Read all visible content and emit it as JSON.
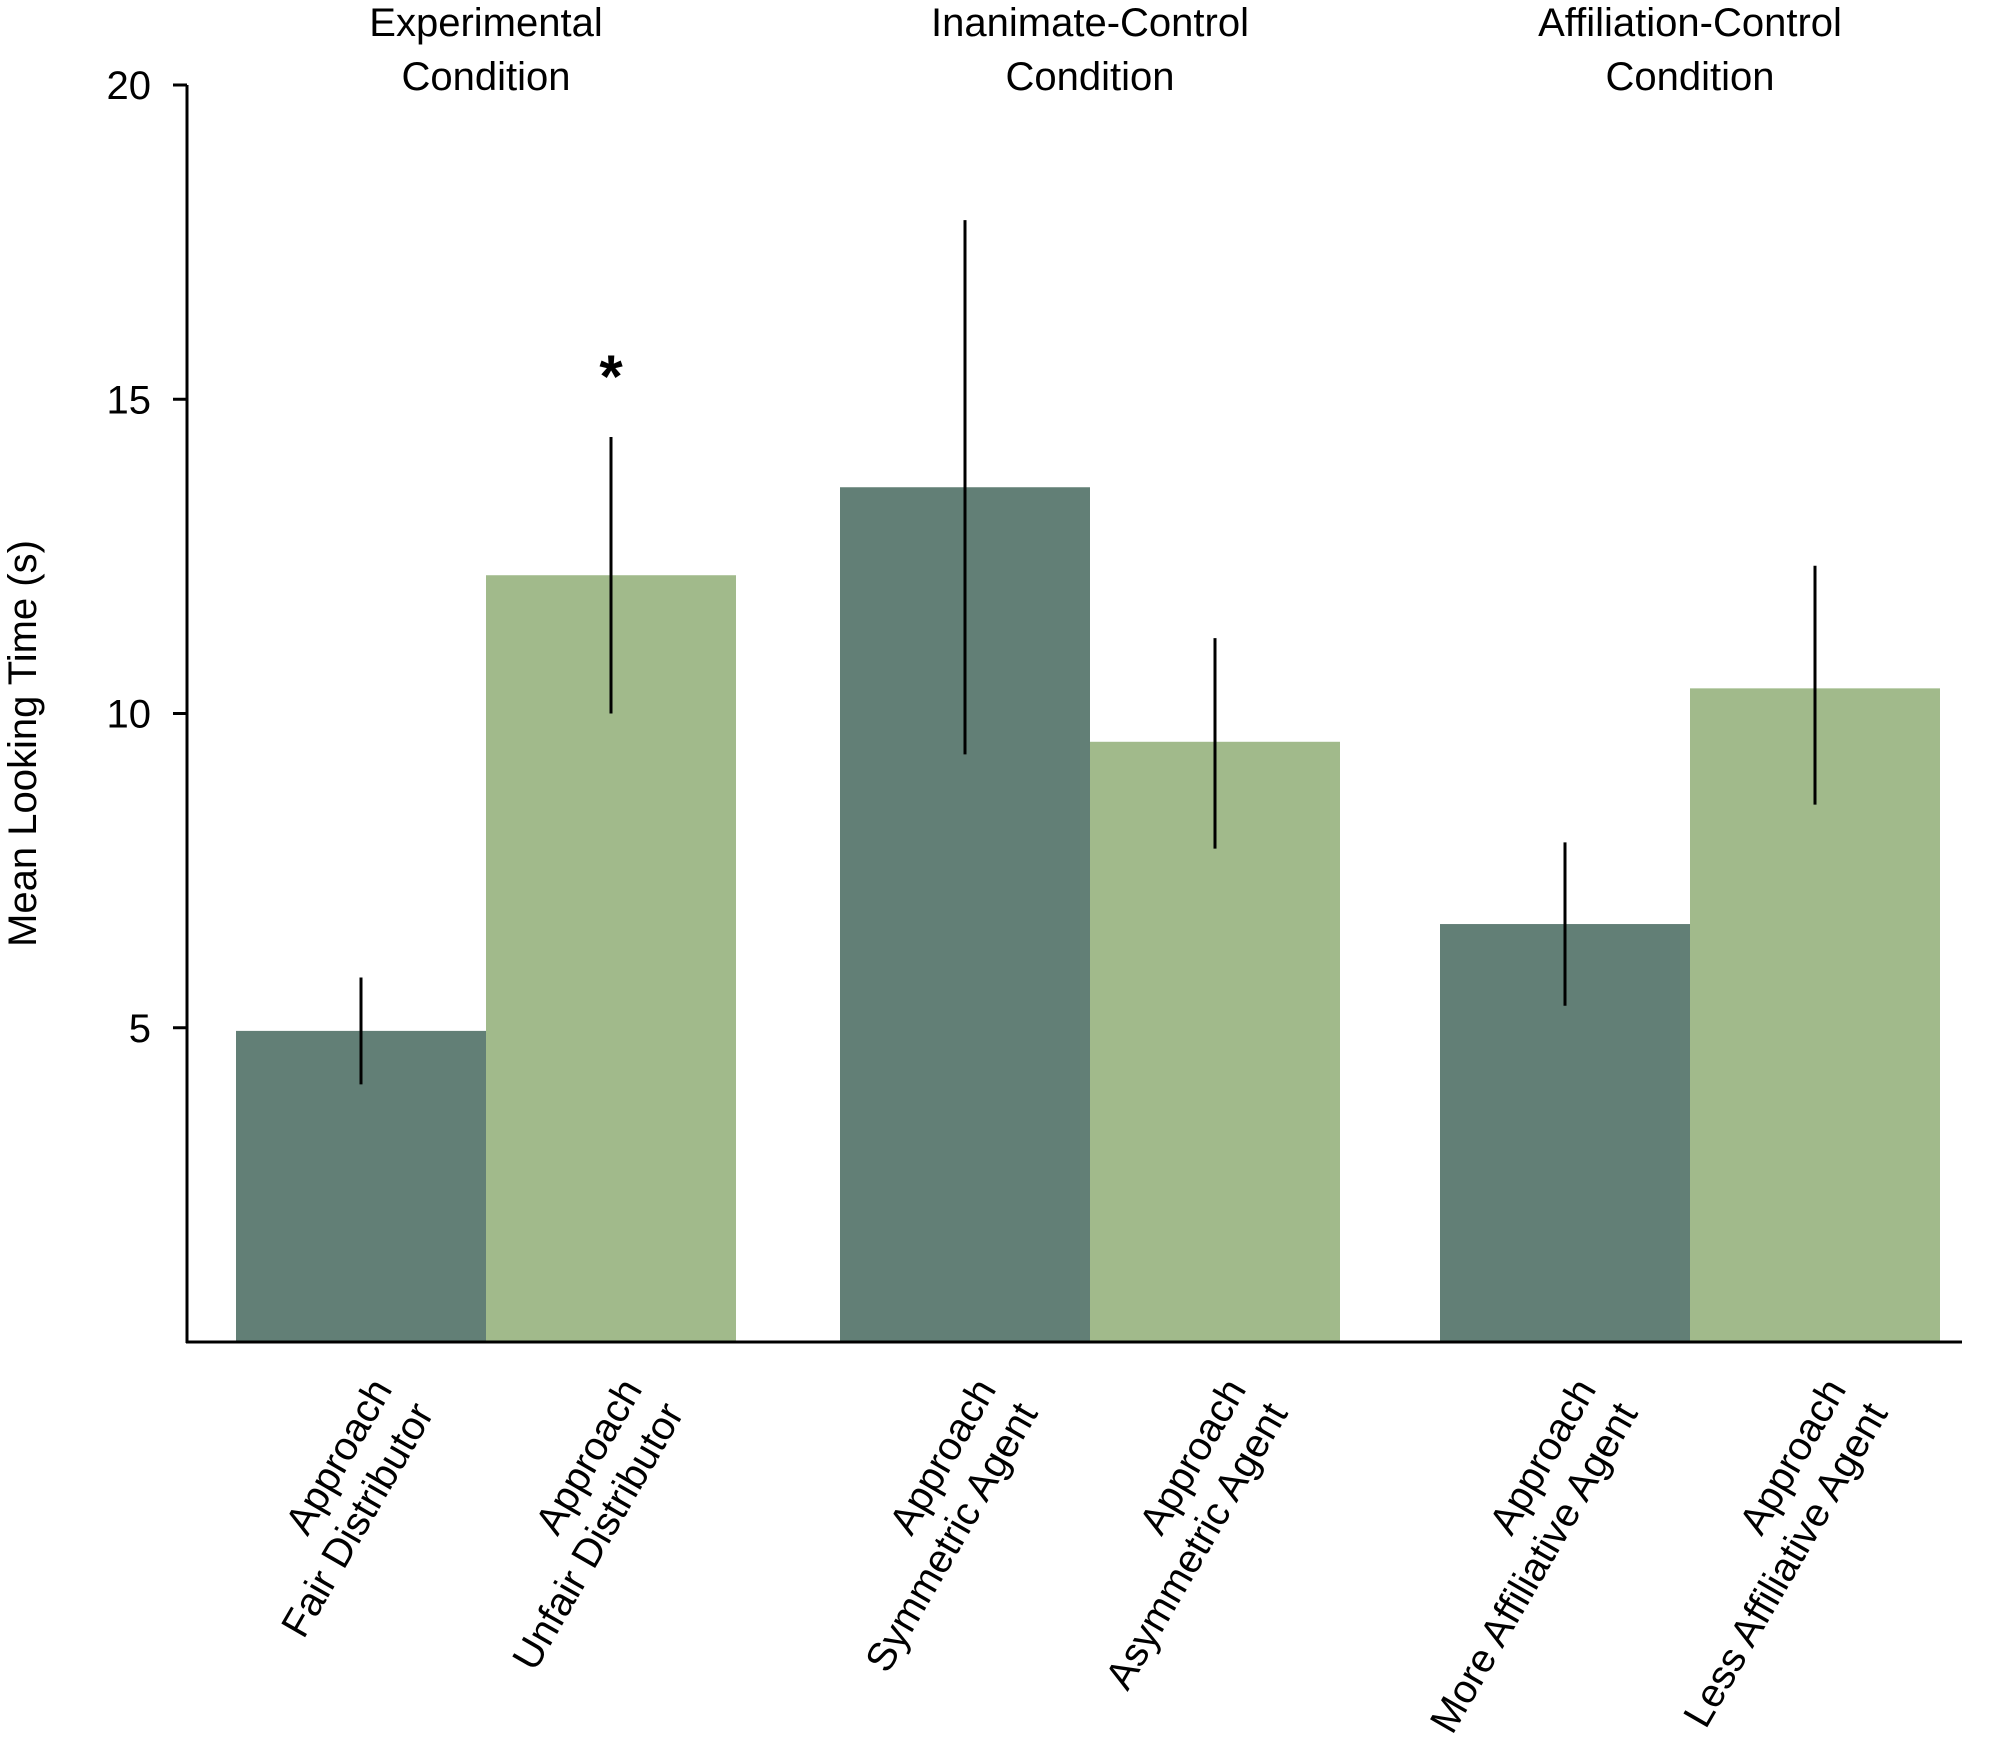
{
  "chart_data": {
    "type": "bar",
    "title": "",
    "xlabel": "",
    "ylabel": "Mean Looking Time (s)",
    "ylim": [
      0,
      20
    ],
    "yticks": [
      5,
      10,
      15,
      20
    ],
    "groups": [
      {
        "title_lines": [
          "Experimental",
          "Condition"
        ],
        "bars": [
          {
            "label_lines": [
              "Approach",
              "Fair Distributor"
            ],
            "value": 4.95,
            "err_low": 4.1,
            "err_high": 5.8,
            "series": "approach_a"
          },
          {
            "label_lines": [
              "Approach",
              "Unfair  Distributor"
            ],
            "value": 12.2,
            "err_low": 10.0,
            "err_high": 14.4,
            "series": "approach_b",
            "annotation": "*"
          }
        ]
      },
      {
        "title_lines": [
          "Inanimate-Control",
          "Condition"
        ],
        "bars": [
          {
            "label_lines": [
              "Approach",
              "Symmetric Agent"
            ],
            "value": 13.6,
            "err_low": 9.35,
            "err_high": 17.85,
            "series": "approach_a"
          },
          {
            "label_lines": [
              "Approach",
              "Asymmetric Agent"
            ],
            "value": 9.55,
            "err_low": 7.85,
            "err_high": 11.2,
            "series": "approach_b"
          }
        ]
      },
      {
        "title_lines": [
          "Affiliation-Control",
          "Condition"
        ],
        "bars": [
          {
            "label_lines": [
              "Approach",
              "More Affiliative Agent"
            ],
            "value": 6.65,
            "err_low": 5.35,
            "err_high": 7.95,
            "series": "approach_a"
          },
          {
            "label_lines": [
              "Approach",
              "Less Affiliative Agent"
            ],
            "value": 10.4,
            "err_low": 8.55,
            "err_high": 12.35,
            "series": "approach_b"
          }
        ]
      }
    ],
    "colors": {
      "approach_a": "#627f76",
      "approach_b": "#a1ba8b",
      "axis": "#000000",
      "error_bar": "#000000"
    }
  }
}
